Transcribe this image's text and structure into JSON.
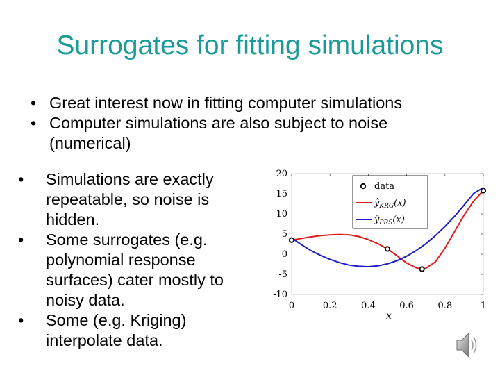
{
  "slide": {
    "title": "Surrogates for fitting simulations",
    "bullets_top": [
      "Great interest now in fitting computer simulations",
      "Computer simulations are also subject to noise (numerical)"
    ],
    "bullets_left": [
      "Simulations are exactly repeatable, so noise is hidden.",
      "Some surrogates  (e.g. polynomial response surfaces) cater mostly to noisy data.",
      "Some (e.g. Kriging) interpolate data."
    ],
    "bullet_glyph": "•",
    "speaker_icon": "speaker-icon"
  },
  "chart_data": {
    "type": "line",
    "xlabel": "x",
    "ylabel": "",
    "xlim": [
      0,
      1
    ],
    "ylim": [
      -10,
      20
    ],
    "x_ticks": [
      "0",
      "0.2",
      "0.4",
      "0.6",
      "0.8",
      "1"
    ],
    "y_ticks": [
      "20",
      "15",
      "10",
      "5",
      "0",
      "-5",
      "-10"
    ],
    "grid": false,
    "legend_position": "top-center",
    "series": [
      {
        "name": "data",
        "kind": "scatter",
        "color": "#000000",
        "x": [
          0,
          0.5,
          0.68,
          1
        ],
        "y": [
          3.5,
          1.3,
          -3.7,
          15.8
        ]
      },
      {
        "name": "ŷ_KRG(x)",
        "legend_main": "ŷ",
        "legend_sub": "KRG",
        "legend_tail": "(x)",
        "kind": "line",
        "color": "#dd1c1c",
        "x": [
          0,
          0.05,
          0.1,
          0.15,
          0.2,
          0.25,
          0.3,
          0.35,
          0.4,
          0.45,
          0.5,
          0.55,
          0.6,
          0.65,
          0.68,
          0.7,
          0.75,
          0.8,
          0.85,
          0.9,
          0.95,
          1
        ],
        "y": [
          3.5,
          3.9,
          4.3,
          4.6,
          4.8,
          4.9,
          4.8,
          4.4,
          3.6,
          2.6,
          1.3,
          -0.4,
          -2.2,
          -3.4,
          -3.7,
          -3.5,
          -1.9,
          1.5,
          5.6,
          9.7,
          13.2,
          15.8
        ]
      },
      {
        "name": "ŷ_PRS(x)",
        "legend_main": "ŷ",
        "legend_sub": "PRS",
        "legend_tail": "(x)",
        "kind": "line",
        "color": "#1c1cc4",
        "x": [
          0,
          0.05,
          0.1,
          0.15,
          0.2,
          0.25,
          0.3,
          0.35,
          0.4,
          0.45,
          0.5,
          0.55,
          0.6,
          0.65,
          0.7,
          0.75,
          0.8,
          0.85,
          0.9,
          0.95,
          1
        ],
        "y": [
          4.0,
          2.4,
          0.9,
          -0.3,
          -1.3,
          -2.1,
          -2.7,
          -3.0,
          -3.1,
          -2.9,
          -2.4,
          -1.6,
          -0.5,
          0.9,
          2.6,
          4.6,
          6.9,
          9.4,
          12.2,
          15.1,
          16.5
        ]
      }
    ]
  }
}
